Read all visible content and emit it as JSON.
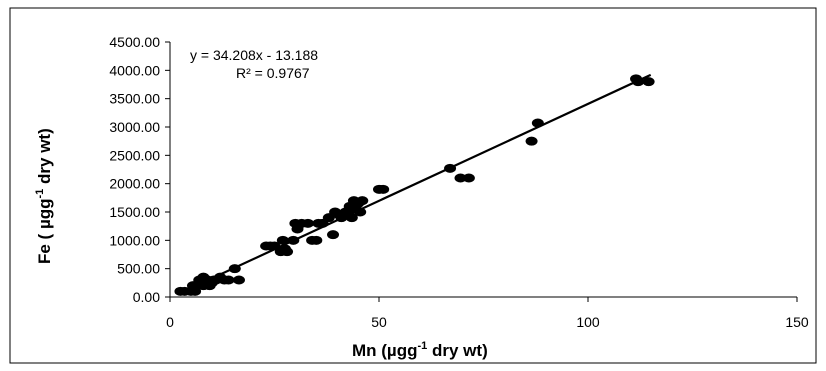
{
  "chart_data": {
    "type": "scatter",
    "x_axis": {
      "label_main": "Mn (µgg",
      "label_sup": "-1",
      "label_end": " dry wt)",
      "min": 0,
      "max": 150,
      "ticks": [
        "0",
        "50",
        "100",
        "150"
      ],
      "tick_values": [
        0,
        50,
        100,
        150
      ]
    },
    "y_axis": {
      "label_main": "Fe ( µgg",
      "label_sup": "-1",
      "label_end": " dry wt)",
      "min": 0,
      "max": 4500,
      "ticks": [
        "0.00",
        "500.00",
        "1000.00",
        "1500.00",
        "2000.00",
        "2500.00",
        "3000.00",
        "3500.00",
        "4000.00",
        "4500.00"
      ],
      "tick_values": [
        0,
        500,
        1000,
        1500,
        2000,
        2500,
        3000,
        3500,
        4000,
        4500
      ]
    },
    "annotation": {
      "equation": "y = 34.208x - 13.188",
      "r_squared": "R² = 0.9767"
    },
    "trendline": {
      "slope": 34.208,
      "intercept": -13.188,
      "x_start": 2.5,
      "x_end": 115
    },
    "marker_color": "#000000",
    "grid": false,
    "points": [
      [
        2.5,
        100
      ],
      [
        3.5,
        100
      ],
      [
        5,
        100
      ],
      [
        6,
        100
      ],
      [
        5.5,
        200
      ],
      [
        6.5,
        200
      ],
      [
        7,
        300
      ],
      [
        7.5,
        250
      ],
      [
        8,
        200
      ],
      [
        8,
        350
      ],
      [
        9,
        300
      ],
      [
        9.5,
        200
      ],
      [
        10,
        250
      ],
      [
        10.5,
        300
      ],
      [
        11,
        300
      ],
      [
        12,
        350
      ],
      [
        13,
        300
      ],
      [
        14,
        300
      ],
      [
        15.5,
        500
      ],
      [
        16.5,
        300
      ],
      [
        23,
        900
      ],
      [
        24,
        900
      ],
      [
        25,
        900
      ],
      [
        26.5,
        800
      ],
      [
        27,
        1000
      ],
      [
        27.5,
        850
      ],
      [
        28,
        800
      ],
      [
        29.5,
        1000
      ],
      [
        30,
        1300
      ],
      [
        30.5,
        1200
      ],
      [
        31.5,
        1300
      ],
      [
        33,
        1300
      ],
      [
        34,
        1000
      ],
      [
        35,
        1000
      ],
      [
        35.5,
        1300
      ],
      [
        36.5,
        1300
      ],
      [
        38,
        1400
      ],
      [
        39,
        1100
      ],
      [
        39.5,
        1500
      ],
      [
        40.5,
        1450
      ],
      [
        41,
        1400
      ],
      [
        42,
        1500
      ],
      [
        42.5,
        1450
      ],
      [
        43,
        1600
      ],
      [
        43.5,
        1400
      ],
      [
        44,
        1700
      ],
      [
        44.5,
        1550
      ],
      [
        45,
        1650
      ],
      [
        45.5,
        1500
      ],
      [
        46,
        1700
      ],
      [
        50,
        1900
      ],
      [
        51,
        1900
      ],
      [
        67,
        2270
      ],
      [
        69.5,
        2100
      ],
      [
        71.5,
        2100
      ],
      [
        86.5,
        2750
      ],
      [
        88,
        3070
      ],
      [
        111.5,
        3850
      ],
      [
        112,
        3800
      ],
      [
        114.5,
        3800
      ]
    ]
  }
}
